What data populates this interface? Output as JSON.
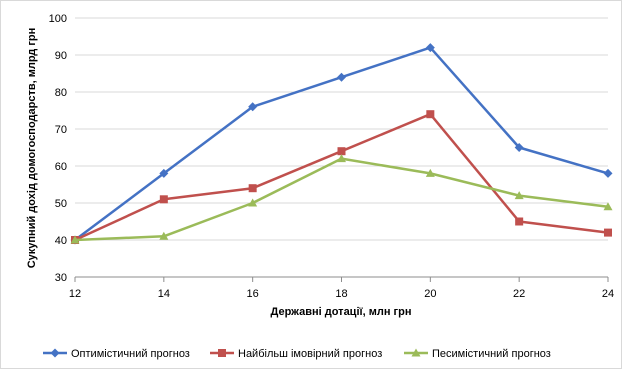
{
  "chart_data": {
    "type": "line",
    "title": "",
    "xlabel": "Державні дотації, млн грн",
    "ylabel": "Сукупний дохід домогосподарств, млрд грн",
    "x": [
      12,
      14,
      16,
      18,
      20,
      22,
      24
    ],
    "xlim": [
      12,
      24
    ],
    "ylim": [
      30,
      100
    ],
    "y_ticks": [
      30,
      40,
      50,
      60,
      70,
      80,
      90,
      100
    ],
    "grid": "horizontal",
    "legend_position": "bottom",
    "series": [
      {
        "name": "Оптимістичний прогноз",
        "values": [
          40,
          58,
          76,
          84,
          92,
          65,
          58
        ],
        "color": "#4472C4",
        "marker": "diamond"
      },
      {
        "name": "Найбільш імовірний прогноз",
        "values": [
          40,
          51,
          54,
          64,
          74,
          45,
          42
        ],
        "color": "#C0504D",
        "marker": "square"
      },
      {
        "name": "Песимістичний прогноз",
        "values": [
          40,
          41,
          50,
          62,
          58,
          52,
          49
        ],
        "color": "#9BBB59",
        "marker": "triangle"
      }
    ]
  }
}
